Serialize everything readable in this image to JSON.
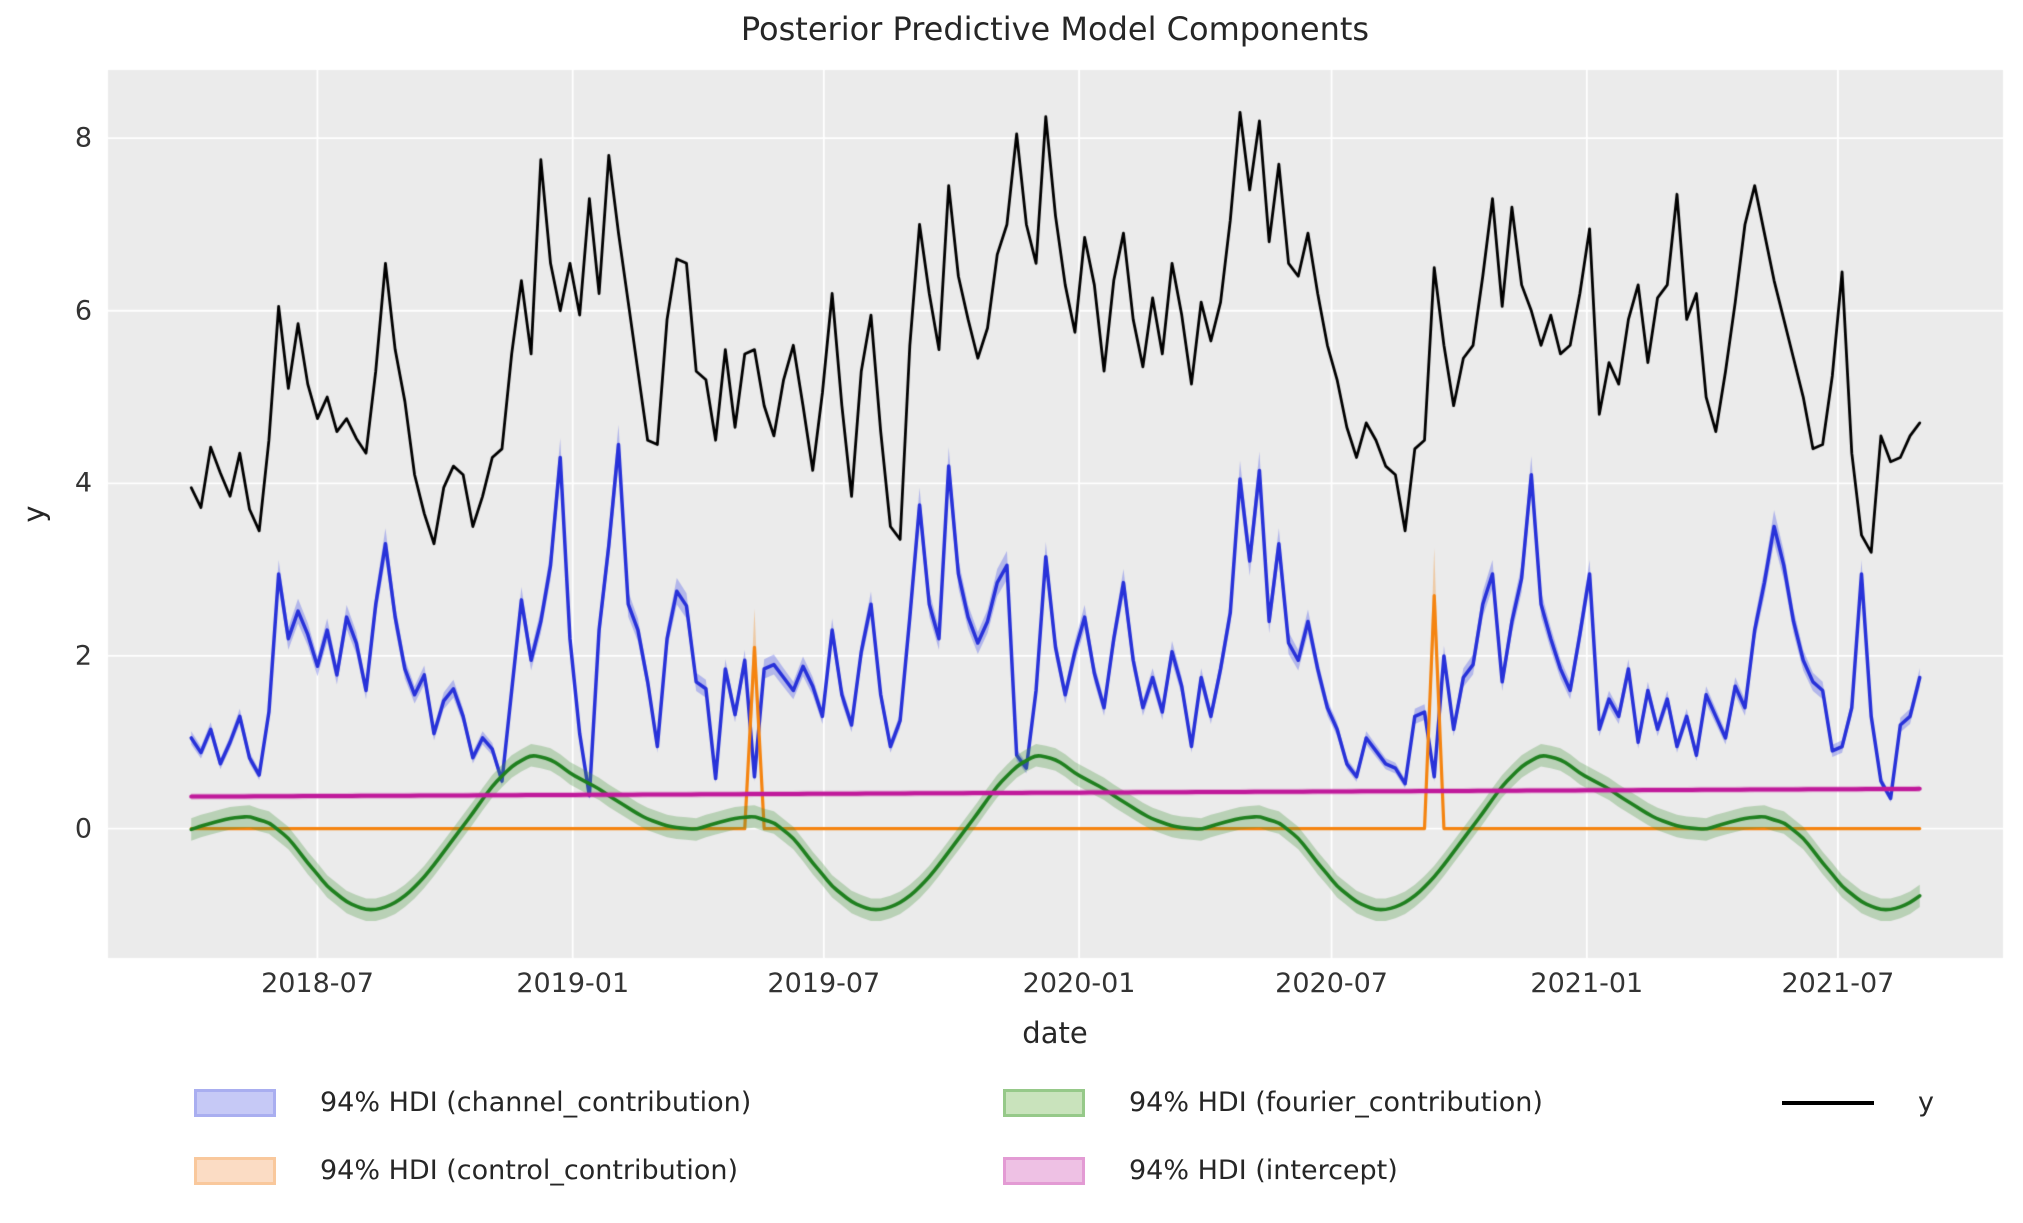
{
  "chart_data": {
    "type": "line",
    "title": "Posterior Predictive Model Components",
    "xlabel": "date",
    "ylabel": "y",
    "x_ticks": [
      "2018-07",
      "2019-01",
      "2019-07",
      "2020-01",
      "2020-07",
      "2021-01",
      "2021-07"
    ],
    "x_tick_days": [
      91,
      275,
      456,
      640,
      822,
      1006,
      1187
    ],
    "y_ticks": [
      0,
      2,
      4,
      6,
      8
    ],
    "y_tick_labels": [
      "0",
      "2",
      "4",
      "6",
      "8"
    ],
    "start_date": "2018-04-01",
    "week_step_days": 7,
    "n_weeks": 179,
    "xlim_days": [
      -60,
      1306
    ],
    "ylim": [
      -1.5,
      8.79
    ],
    "grid": true,
    "plot_bg": "#ebebeb",
    "grid_color": "#ffffff",
    "legend_position": "below-axes",
    "series": {
      "y": {
        "label": "y",
        "color": "#000000",
        "values": [
          3.95,
          3.72,
          4.42,
          4.12,
          3.85,
          4.35,
          3.7,
          3.45,
          4.5,
          6.05,
          5.1,
          5.85,
          5.15,
          4.75,
          5.0,
          4.6,
          4.75,
          4.52,
          4.35,
          5.3,
          6.55,
          5.55,
          4.95,
          4.1,
          3.65,
          3.3,
          3.95,
          4.2,
          4.1,
          3.5,
          3.85,
          4.3,
          4.4,
          5.5,
          6.35,
          5.5,
          7.75,
          6.55,
          6.0,
          6.55,
          5.95,
          7.3,
          6.2,
          7.8,
          6.9,
          6.1,
          5.3,
          4.5,
          4.45,
          5.9,
          6.6,
          6.55,
          5.3,
          5.2,
          4.5,
          5.55,
          4.65,
          5.5,
          5.55,
          4.9,
          4.55,
          5.2,
          5.6,
          4.9,
          4.15,
          5.05,
          6.2,
          4.9,
          3.85,
          5.3,
          5.95,
          4.6,
          3.5,
          3.35,
          5.6,
          7.0,
          6.2,
          5.55,
          7.45,
          6.4,
          5.9,
          5.45,
          5.8,
          6.65,
          7.0,
          8.05,
          7.0,
          6.55,
          8.25,
          7.1,
          6.3,
          5.75,
          6.85,
          6.3,
          5.3,
          6.35,
          6.9,
          5.9,
          5.35,
          6.15,
          5.5,
          6.55,
          5.95,
          5.15,
          6.1,
          5.65,
          6.1,
          7.05,
          8.3,
          7.4,
          8.2,
          6.8,
          7.7,
          6.55,
          6.4,
          6.9,
          6.2,
          5.6,
          5.2,
          4.65,
          4.3,
          4.7,
          4.5,
          4.2,
          4.1,
          3.45,
          4.4,
          4.5,
          6.5,
          5.6,
          4.9,
          5.45,
          5.6,
          6.4,
          7.3,
          6.05,
          7.2,
          6.3,
          6.0,
          5.6,
          5.95,
          5.5,
          5.6,
          6.2,
          6.95,
          4.8,
          5.4,
          5.15,
          5.9,
          6.3,
          5.4,
          6.15,
          6.3,
          7.35,
          5.9,
          6.2,
          5.0,
          4.6,
          5.3,
          6.1,
          7.0,
          7.45,
          6.9,
          6.35,
          5.9,
          5.45,
          5.0,
          4.4,
          4.45,
          5.25,
          6.45,
          4.35,
          3.4,
          3.2,
          4.55,
          4.25,
          4.3,
          4.55,
          4.7
        ]
      },
      "channel_contribution": {
        "label": "94% HDI (channel_contribution)",
        "line_color": "#2832d9",
        "band_color": "rgba(90,100,235,0.38)",
        "hdi_halfwidth_base": 0.03,
        "hdi_halfwidth_scale": 0.045,
        "values": [
          1.05,
          0.88,
          1.15,
          0.75,
          1.0,
          1.3,
          0.82,
          0.62,
          1.35,
          2.95,
          2.2,
          2.52,
          2.25,
          1.88,
          2.3,
          1.78,
          2.45,
          2.15,
          1.6,
          2.6,
          3.3,
          2.45,
          1.85,
          1.55,
          1.78,
          1.1,
          1.48,
          1.62,
          1.3,
          0.82,
          1.05,
          0.92,
          0.55,
          1.6,
          2.65,
          1.95,
          2.4,
          3.05,
          4.3,
          2.2,
          1.1,
          0.38,
          2.3,
          3.28,
          4.45,
          2.6,
          2.3,
          1.7,
          0.95,
          2.2,
          2.75,
          2.58,
          1.7,
          1.62,
          0.58,
          1.85,
          1.32,
          1.95,
          0.6,
          1.85,
          1.9,
          1.75,
          1.6,
          1.88,
          1.65,
          1.3,
          2.3,
          1.55,
          1.2,
          2.05,
          2.6,
          1.55,
          0.95,
          1.25,
          2.45,
          3.75,
          2.6,
          2.2,
          4.2,
          2.95,
          2.45,
          2.15,
          2.4,
          2.85,
          3.05,
          0.85,
          0.7,
          1.6,
          3.15,
          2.1,
          1.55,
          2.05,
          2.45,
          1.8,
          1.4,
          2.2,
          2.85,
          1.95,
          1.4,
          1.75,
          1.35,
          2.05,
          1.65,
          0.95,
          1.75,
          1.3,
          1.85,
          2.5,
          4.05,
          3.1,
          4.15,
          2.4,
          3.3,
          2.15,
          1.95,
          2.4,
          1.85,
          1.4,
          1.15,
          0.75,
          0.6,
          1.05,
          0.9,
          0.75,
          0.7,
          0.52,
          1.3,
          1.35,
          0.6,
          2.0,
          1.15,
          1.75,
          1.9,
          2.6,
          2.95,
          1.7,
          2.4,
          2.9,
          4.1,
          2.6,
          2.2,
          1.85,
          1.6,
          2.25,
          2.95,
          1.15,
          1.5,
          1.3,
          1.85,
          1.0,
          1.6,
          1.15,
          1.5,
          0.95,
          1.3,
          0.85,
          1.55,
          1.3,
          1.05,
          1.65,
          1.4,
          2.3,
          2.85,
          3.5,
          3.05,
          2.4,
          1.95,
          1.7,
          1.6,
          0.9,
          0.95,
          1.4,
          2.95,
          1.3,
          0.55,
          0.35,
          1.2,
          1.3,
          1.75
        ]
      },
      "control_contribution": {
        "label": "94% HDI (control_contribution)",
        "line_color": "#f58410",
        "band_color": "rgba(246,135,18,0.32)",
        "baseline": 0,
        "spikes": [
          {
            "week": 58,
            "date": "2019-05-12",
            "mean": 2.1,
            "hdi_lower": 1.7,
            "hdi_upper": 2.55
          },
          {
            "week": 128,
            "date": "2020-09-13",
            "mean": 2.7,
            "hdi_lower": 2.25,
            "hdi_upper": 3.25
          }
        ]
      },
      "fourier_contribution": {
        "label": "94% HDI (fourier_contribution)",
        "line_color": "#1f801f",
        "band_color": "rgba(70,150,60,0.30)",
        "hdi_halfwidth": 0.13,
        "seasonal_weekly_profile": [
          -0.01,
          0.03,
          0.06,
          0.09,
          0.12,
          0.13,
          0.14,
          0.1,
          0.07,
          -0.02,
          -0.11,
          -0.25,
          -0.4,
          -0.53,
          -0.67,
          -0.76,
          -0.85,
          -0.9,
          -0.94,
          -0.94,
          -0.91,
          -0.86,
          -0.78,
          -0.68,
          -0.56,
          -0.42,
          -0.27,
          -0.12,
          0.03,
          0.18,
          0.34,
          0.49,
          0.61,
          0.72,
          0.79,
          0.85,
          0.83,
          0.8,
          0.73,
          0.64,
          0.58,
          0.52,
          0.46,
          0.38,
          0.31,
          0.24,
          0.17,
          0.11,
          0.07,
          0.03,
          0.01,
          0.0
        ]
      },
      "intercept": {
        "label": "94% HDI (intercept)",
        "line_color": "#c01a9b",
        "band_color": "rgba(200,40,160,0.30)",
        "start_value": 0.37,
        "end_value": 0.46,
        "hdi_halfwidth": 0.035
      }
    },
    "legend": [
      {
        "label": "94% HDI (channel_contribution)",
        "patch_fill": "#c6c9f6",
        "patch_border": "#a9aef0"
      },
      {
        "label": "94% HDI (control_contribution)",
        "patch_fill": "#fbdcc4",
        "patch_border": "#f9c89c"
      },
      {
        "label": "94% HDI (fourier_contribution)",
        "patch_fill": "#c9e3bc",
        "patch_border": "#96c989"
      },
      {
        "label": "94% HDI (intercept)",
        "patch_fill": "#eec1e4",
        "patch_border": "#e39bd4"
      },
      {
        "label": "y",
        "line_color": "#000000"
      }
    ]
  }
}
